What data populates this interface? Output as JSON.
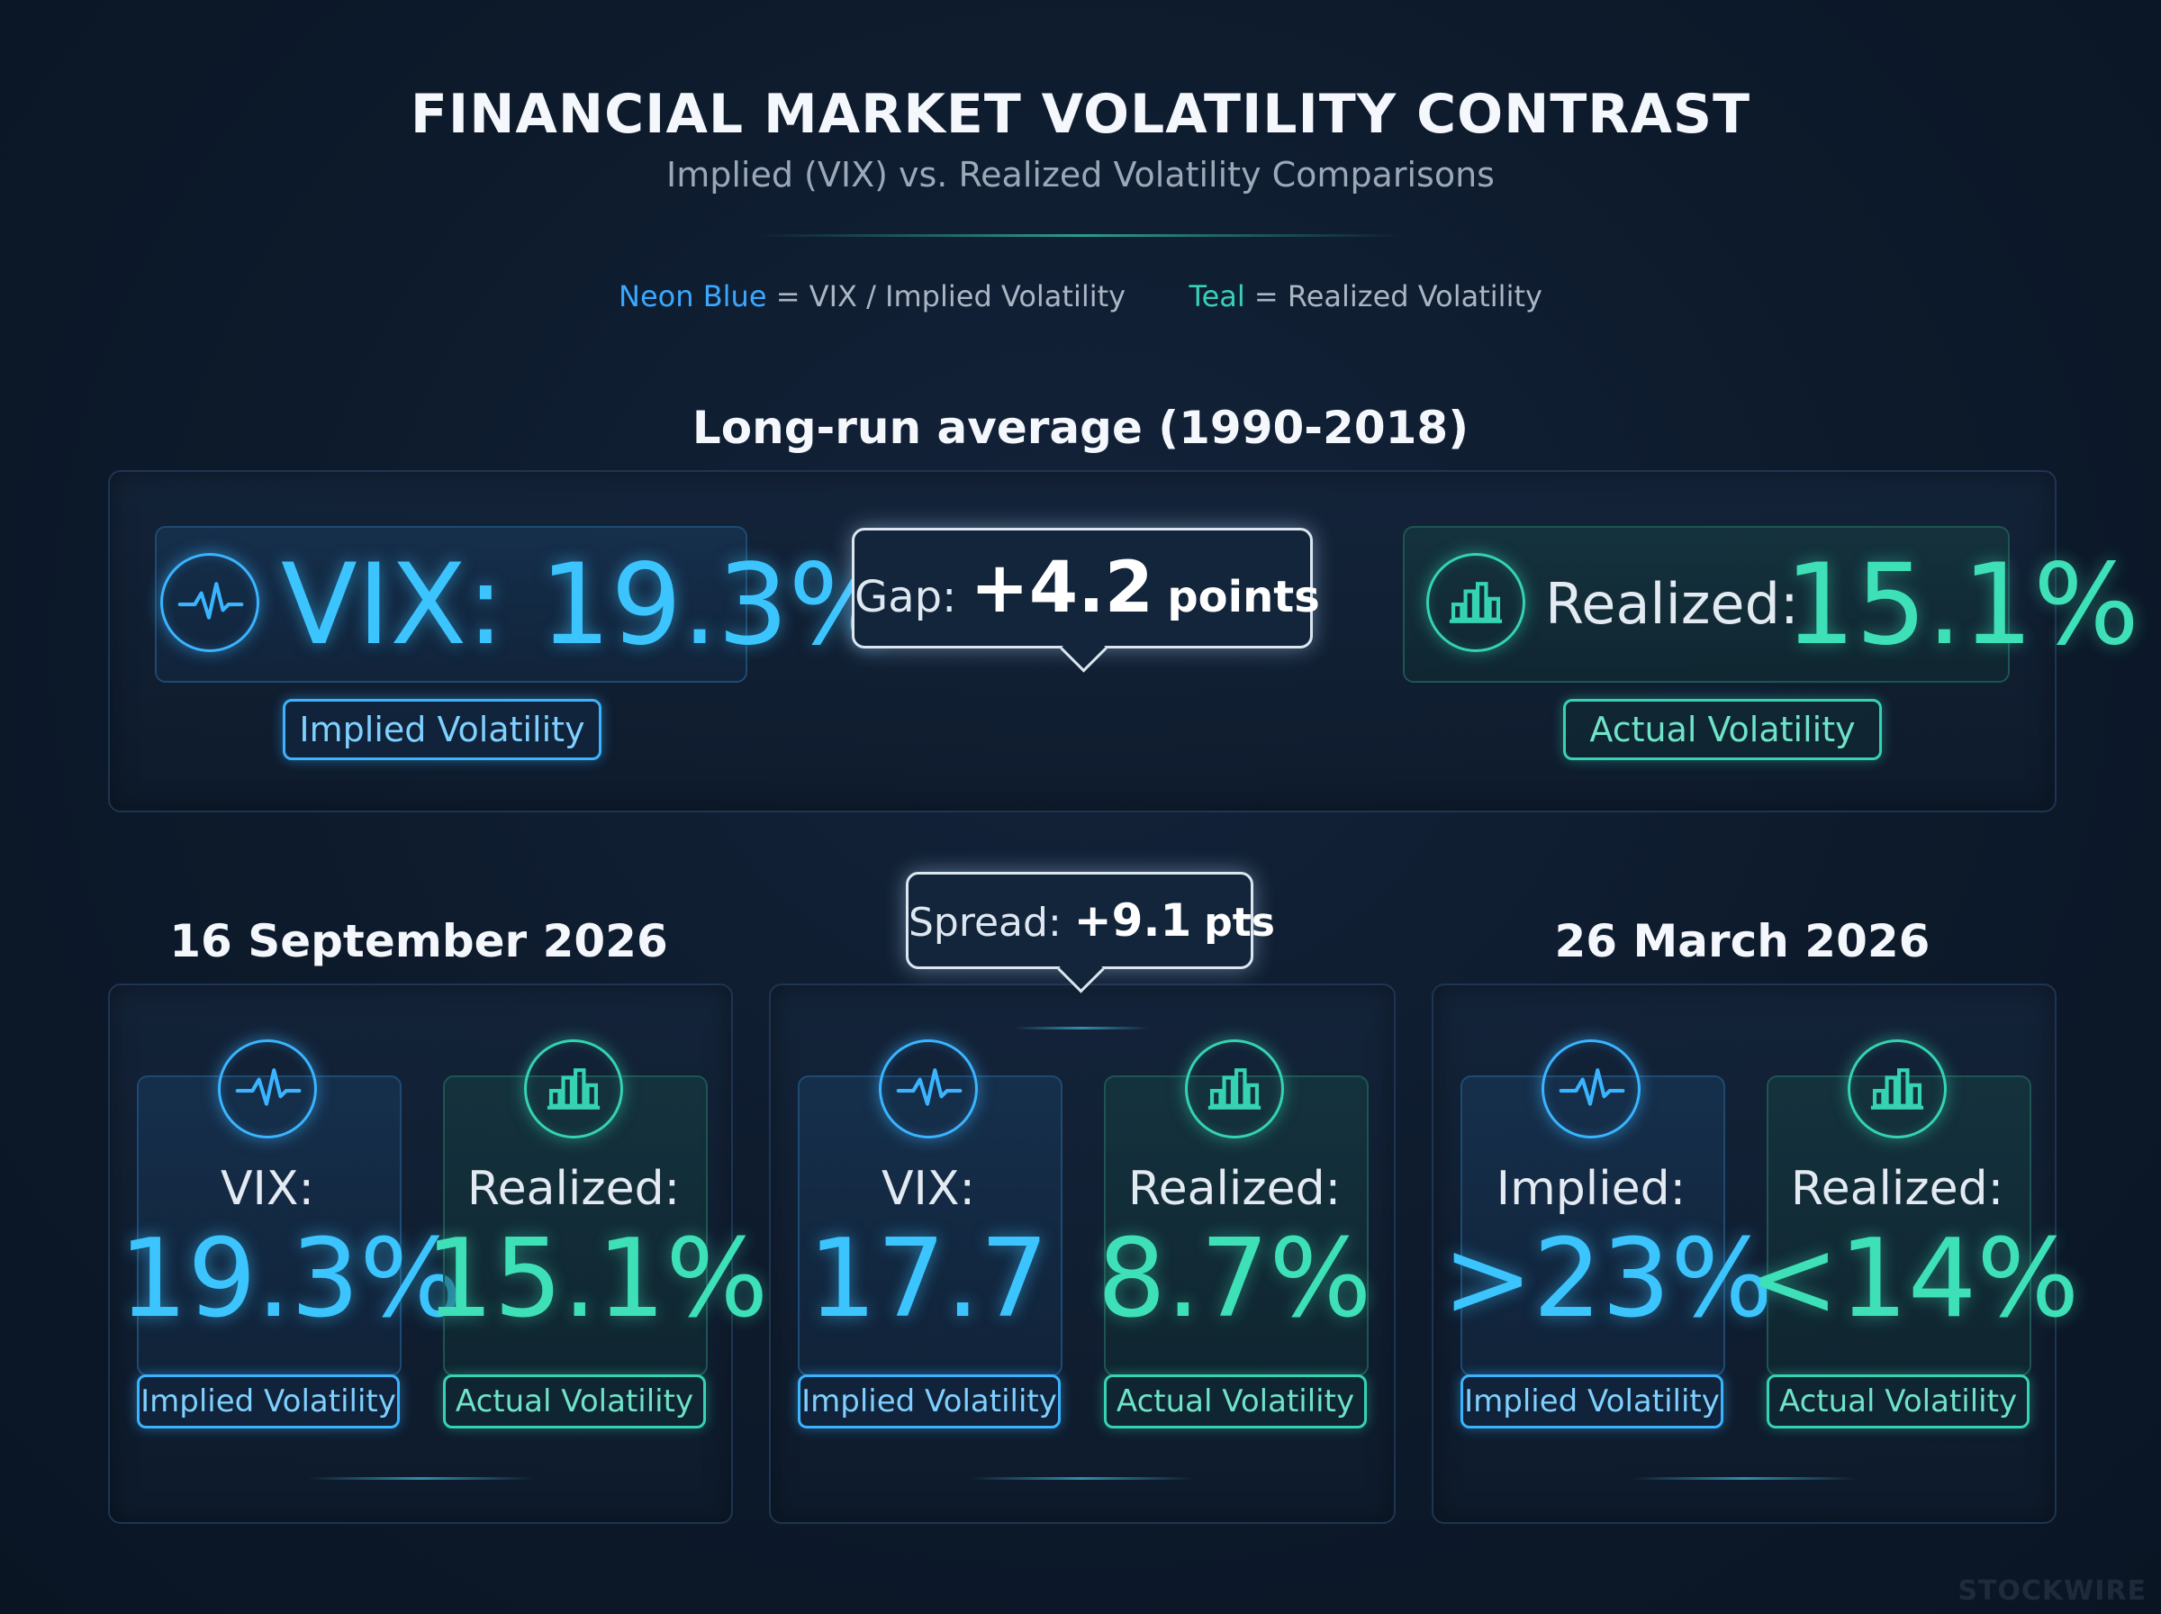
{
  "header": {
    "title": "FINANCIAL MARKET VOLATILITY CONTRAST",
    "subtitle": "Implied (VIX) vs. Realized Volatility Comparisons"
  },
  "legend": {
    "blue_label": "Neon Blue",
    "blue_text": "= VIX / Implied Volatility",
    "teal_label": "Teal",
    "teal_text": "= Realized Volatility"
  },
  "long_run": {
    "title": "Long-run average (1990-2018)",
    "vix_value": "VIX: 19.3%",
    "vix_tag": "Implied Volatility",
    "gap_label": "Gap:",
    "gap_value": "+4.2",
    "gap_unit": "points",
    "realized_label": "Realized:",
    "realized_value": "15.1%",
    "realized_tag": "Actual Volatility"
  },
  "sep_2026": {
    "title": "16 September 2026",
    "vix_label": "VIX:",
    "vix_value": "19.3%",
    "vix_tag": "Implied Volatility",
    "realized_label": "Realized:",
    "realized_value": "15.1%",
    "realized_tag": "Actual Volatility"
  },
  "spread": {
    "label": "Spread:",
    "value": "+9.1",
    "unit": "pts",
    "vix_label": "VIX:",
    "vix_value": "17.7",
    "vix_tag": "Implied Volatility",
    "realized_label": "Realized:",
    "realized_value": "8.7%",
    "realized_tag": "Actual Volatility"
  },
  "mar_2026": {
    "title": "26 March 2026",
    "implied_label": "Implied:",
    "implied_value": ">23%",
    "implied_tag": "Implied Volatility",
    "realized_label": "Realized:",
    "realized_value": "<14%",
    "realized_tag": "Actual Volatility"
  },
  "brand": "STOCKWIRE",
  "icons": {
    "implied": "pulse-wave-icon",
    "realized": "bar-chart-icon"
  },
  "colors": {
    "neon_blue": "#3cc4ff",
    "teal": "#3ee0b8",
    "background": "#0d1a2b"
  }
}
